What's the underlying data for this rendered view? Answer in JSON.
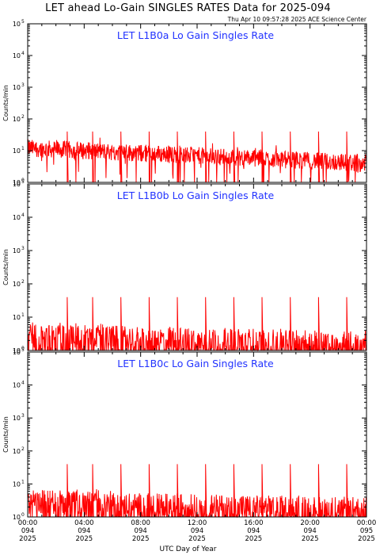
{
  "header": {
    "title": "LET ahead Lo-Gain SINGLES RATES Data for 2025-094",
    "timestamp": "Thu Apr 10 09:57:28 2025 ACE Science Center"
  },
  "colors": {
    "data": "#ff0000",
    "panel_title": "#2233ff",
    "axes": "#000000"
  },
  "chart_data": [
    {
      "type": "line",
      "title": "LET L1B0a Lo Gain Singles Rate",
      "ylabel": "Counts/min",
      "yscale": "log",
      "ylim": [
        1,
        100000
      ],
      "xlim": [
        0,
        24
      ],
      "baseline": 12,
      "baseline_end": 4,
      "spike_height": 40,
      "noise": "high"
    },
    {
      "type": "line",
      "title": "LET L1B0b Lo Gain Singles Rate",
      "ylabel": "Counts/min",
      "yscale": "log",
      "ylim": [
        1,
        100000
      ],
      "xlim": [
        0,
        24
      ],
      "baseline": 2,
      "baseline_end": 1.3,
      "spike_height": 40,
      "noise": "low"
    },
    {
      "type": "line",
      "title": "LET L1B0c Lo Gain Singles Rate",
      "ylabel": "Counts/min",
      "yscale": "log",
      "ylim": [
        1,
        100000
      ],
      "xlim": [
        0,
        24
      ],
      "baseline": 2,
      "baseline_end": 1.3,
      "spike_height": 40,
      "noise": "low"
    }
  ],
  "y_ticks": [
    {
      "label": "10",
      "exp": "0"
    },
    {
      "label": "10",
      "exp": "1"
    },
    {
      "label": "10",
      "exp": "2"
    },
    {
      "label": "10",
      "exp": "3"
    },
    {
      "label": "10",
      "exp": "4"
    },
    {
      "label": "10",
      "exp": "5"
    }
  ],
  "spike_times": [
    2.8,
    4.6,
    6.6,
    8.6,
    10.6,
    12.6,
    14.6,
    16.6,
    18.6,
    20.6,
    22.6
  ],
  "x_ticks": [
    {
      "time": "00:00",
      "doy": "094",
      "year": "2025"
    },
    {
      "time": "04:00",
      "doy": "094",
      "year": "2025"
    },
    {
      "time": "08:00",
      "doy": "094",
      "year": "2025"
    },
    {
      "time": "12:00",
      "doy": "094",
      "year": "2025"
    },
    {
      "time": "16:00",
      "doy": "094",
      "year": "2025"
    },
    {
      "time": "20:00",
      "doy": "094",
      "year": "2025"
    },
    {
      "time": "00:00",
      "doy": "095",
      "year": "2025"
    }
  ],
  "xlabel": "UTC Day of Year"
}
